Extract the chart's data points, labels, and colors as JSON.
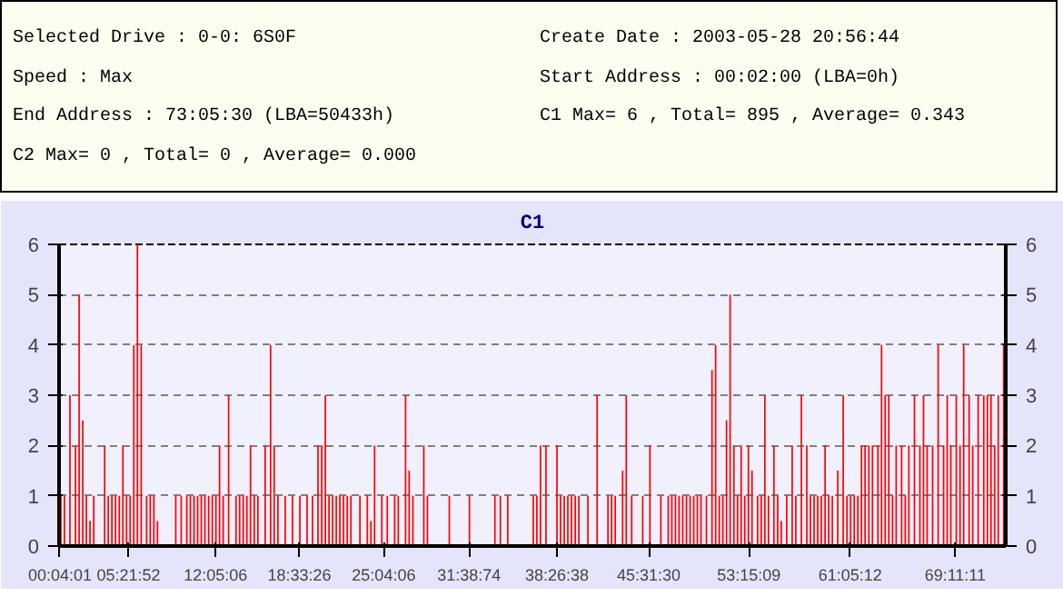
{
  "chart_data": {
    "type": "bar",
    "title": "C1",
    "annotations": [
      "Selected Drive : 0-0: 6S0F",
      "Create Date : 2003-05-28 20:56:44",
      "Speed : Max",
      "Start Address : 00:02:00 (LBA=0h)",
      "End Address : 73:05:30 (LBA=50433h)",
      "C1 Max= 6 , Total= 895 , Average= 0.343",
      "C2 Max= 0 , Total= 0 , Average= 0.000"
    ],
    "xlim": [
      0,
      73.09
    ],
    "xticks": [
      {
        "value": 0.0669,
        "label": "00:04:01"
      },
      {
        "value": 5.3644,
        "label": "05:21:52"
      },
      {
        "value": 12.085,
        "label": "12:05:06"
      },
      {
        "value": 18.5572,
        "label": "18:33:26"
      },
      {
        "value": 25.0683,
        "label": "25:04:06"
      },
      {
        "value": 31.6539,
        "label": "31:38:74"
      },
      {
        "value": 38.4439,
        "label": "38:26:38"
      },
      {
        "value": 45.525,
        "label": "45:31:30"
      },
      {
        "value": 53.2525,
        "label": "53:15:09"
      },
      {
        "value": 61.0867,
        "label": "61:05:12"
      },
      {
        "value": 69.1864,
        "label": "69:11:11"
      }
    ],
    "ylim": [
      0,
      6
    ],
    "yticks": [
      0,
      1,
      2,
      3,
      4,
      5,
      6
    ],
    "y2lim": [
      0,
      6
    ],
    "y2ticks": [
      0,
      1,
      2,
      3,
      4,
      5,
      6
    ],
    "grid": "y",
    "series": [
      {
        "color": "#ff0000",
        "x": [
          0.14,
          0.42,
          0.84,
          1.27,
          1.55,
          1.83,
          2.11,
          2.39,
          2.68,
          3.52,
          3.8,
          4.08,
          4.36,
          4.65,
          4.93,
          5.21,
          5.49,
          5.77,
          6.05,
          6.34,
          6.76,
          7.04,
          7.32,
          7.6,
          9.01,
          9.43,
          9.86,
          10.14,
          10.42,
          10.7,
          10.98,
          11.26,
          11.55,
          11.83,
          12.11,
          12.39,
          12.67,
          13.09,
          13.66,
          13.94,
          14.22,
          14.5,
          14.78,
          15.07,
          15.35,
          15.91,
          16.33,
          16.61,
          16.9,
          17.46,
          18.02,
          18.59,
          19.15,
          19.57,
          19.99,
          20.28,
          20.56,
          20.84,
          21.12,
          21.4,
          21.68,
          21.96,
          22.25,
          22.53,
          23.23,
          23.8,
          24.08,
          24.36,
          24.92,
          25.34,
          25.91,
          26.19,
          26.75,
          27.03,
          27.32,
          28.16,
          28.44,
          30.13,
          31.68,
          33.65,
          34.07,
          34.64,
          36.61,
          36.89,
          37.17,
          37.59,
          38.44,
          38.72,
          39.0,
          39.28,
          39.56,
          39.85,
          40.13,
          40.83,
          41.54,
          42.38,
          42.66,
          42.94,
          43.51,
          43.79,
          44.21,
          45.06,
          45.62,
          46.46,
          47.03,
          47.31,
          47.59,
          47.87,
          48.15,
          48.44,
          48.72,
          49.0,
          49.28,
          49.56,
          49.98,
          50.41,
          50.69,
          50.97,
          51.25,
          51.53,
          51.81,
          52.1,
          52.38,
          52.66,
          52.94,
          53.22,
          53.5,
          53.93,
          54.21,
          54.49,
          54.77,
          55.19,
          55.48,
          55.76,
          56.18,
          56.6,
          56.88,
          57.31,
          57.73,
          58.01,
          58.29,
          58.57,
          58.85,
          59.14,
          59.42,
          59.7,
          60.12,
          60.54,
          60.83,
          61.11,
          61.39,
          61.67,
          61.95,
          62.23,
          62.52,
          62.8,
          63.22,
          63.5,
          63.78,
          64.06,
          64.35,
          64.63,
          65.05,
          65.33,
          65.61,
          66.04,
          66.46,
          66.74,
          67.02,
          67.44,
          67.87,
          68.29,
          68.57,
          68.85,
          69.27,
          69.56,
          69.84,
          70.26,
          70.54,
          70.96,
          71.39,
          71.67,
          71.95,
          72.23,
          72.51,
          72.93
        ],
        "values": [
          1,
          1,
          3,
          2,
          5,
          2.5,
          1,
          0.5,
          1,
          2,
          1,
          1,
          1,
          1,
          2,
          1,
          1,
          4,
          6,
          4,
          1,
          1,
          1,
          0.5,
          1,
          1,
          1,
          1,
          1,
          1,
          1,
          1,
          1,
          1,
          1,
          2,
          1,
          3,
          1,
          1,
          1,
          1,
          2,
          1,
          1,
          2,
          4,
          2,
          1,
          1,
          1,
          1,
          1,
          1,
          2,
          2,
          3,
          1,
          1,
          1,
          1,
          1,
          1,
          1,
          1,
          1,
          0.5,
          2,
          1,
          1,
          1,
          1,
          3,
          1.5,
          1,
          2,
          1,
          1,
          1,
          1,
          1,
          1,
          1,
          1,
          2,
          2,
          2,
          1,
          1,
          1,
          1,
          1,
          1,
          1,
          3,
          1,
          1,
          1,
          1.5,
          3,
          1,
          1,
          2,
          1,
          1,
          1,
          1,
          1,
          1,
          1,
          1,
          1,
          1,
          1,
          1,
          3.5,
          4,
          1,
          1,
          2.5,
          5,
          2,
          1,
          2,
          1,
          2,
          1.5,
          1,
          1,
          3,
          1,
          2,
          1,
          0.5,
          1,
          2,
          1,
          3,
          2,
          1,
          1,
          1,
          1,
          2,
          1,
          1,
          1.5,
          3,
          1,
          1,
          1,
          1,
          2,
          2,
          2,
          2,
          2,
          4,
          3,
          3,
          1,
          2,
          2,
          1,
          2,
          3,
          2,
          3,
          2,
          2,
          4,
          2,
          3,
          2,
          3,
          2,
          4,
          3,
          2,
          3,
          3,
          3,
          3,
          2,
          3,
          4
        ]
      }
    ]
  }
}
